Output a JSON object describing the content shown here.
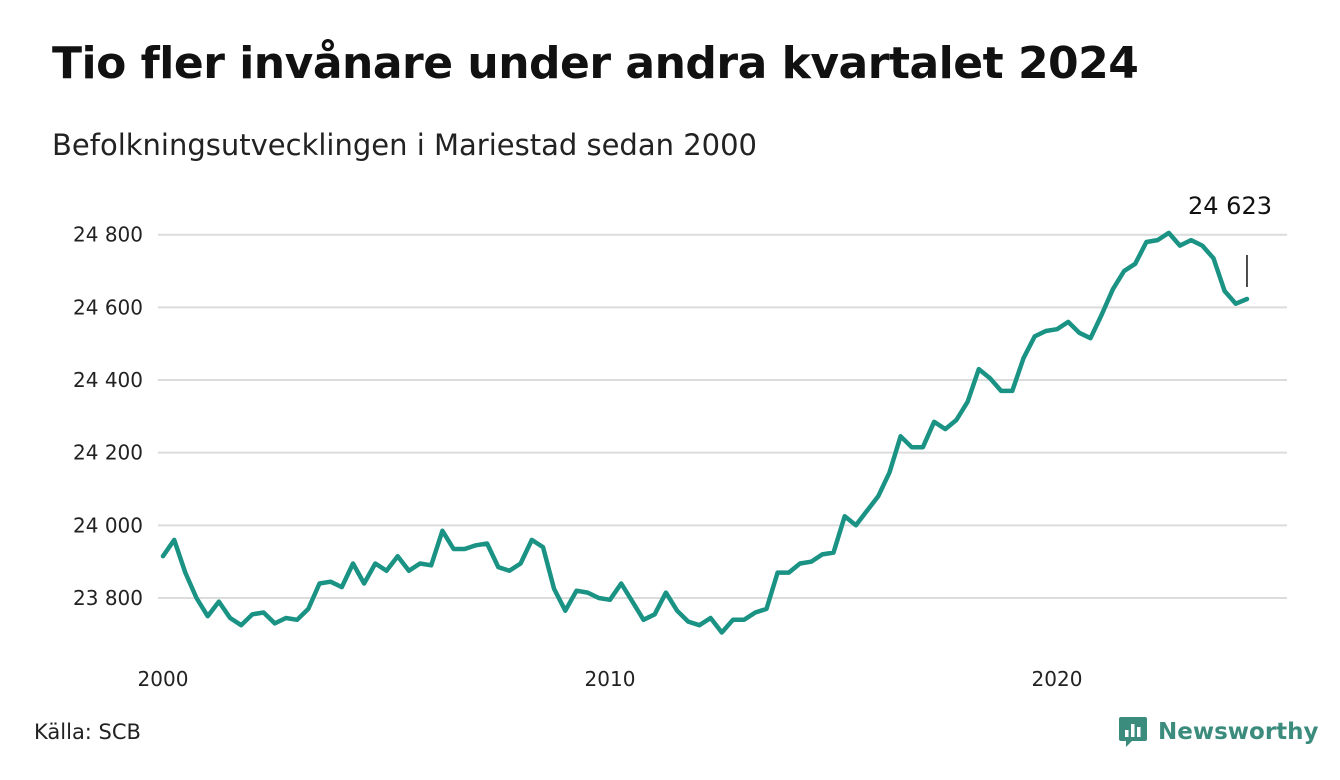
{
  "header": {
    "title": "Tio fler invånare under andra kvartalet 2024",
    "subtitle": "Befolkningsutvecklingen i Mariestad sedan 2000"
  },
  "footer": {
    "source": "Källa: SCB",
    "brand": "Newsworthy"
  },
  "colors": {
    "line": "#1a9384",
    "grid": "#dcdcdc",
    "brand": "#3c8c7e"
  },
  "icons": {
    "brand_logo": "newsworthy-logo-icon"
  },
  "chart_data": {
    "type": "line",
    "title": "Tio fler invånare under andra kvartalet 2024",
    "subtitle": "Befolkningsutvecklingen i Mariestad sedan 2000",
    "xlabel": "",
    "ylabel": "",
    "x_ticks": [
      2000,
      2010,
      2020
    ],
    "y_ticks": [
      23800,
      24000,
      24200,
      24400,
      24600,
      24800
    ],
    "y_tick_labels": [
      "23 800",
      "24 000",
      "24 200",
      "24 400",
      "24 600",
      "24 800"
    ],
    "xlim": [
      2000,
      2024.5
    ],
    "ylim": [
      23700,
      24820
    ],
    "grid": true,
    "legend": "none",
    "annotation": {
      "label": "24 623",
      "x": 2024.25,
      "y": 24623
    },
    "series": [
      {
        "x_start": 2000.0,
        "x_step": 0.25,
        "values": [
          23915,
          23960,
          23870,
          23800,
          23750,
          23790,
          23745,
          23725,
          23755,
          23760,
          23730,
          23745,
          23740,
          23770,
          23840,
          23845,
          23830,
          23895,
          23840,
          23895,
          23875,
          23915,
          23875,
          23895,
          23890,
          23985,
          23935,
          23935,
          23945,
          23950,
          23885,
          23875,
          23895,
          23960,
          23940,
          23825,
          23765,
          23820,
          23815,
          23800,
          23795,
          23840,
          23790,
          23740,
          23755,
          23815,
          23765,
          23735,
          23725,
          23745,
          23705,
          23740,
          23740,
          23760,
          23770,
          23870,
          23870,
          23895,
          23900,
          23920,
          23925,
          24025,
          24000,
          24040,
          24080,
          24145,
          24245,
          24215,
          24215,
          24285,
          24265,
          24290,
          24340,
          24430,
          24405,
          24370,
          24370,
          24460,
          24520,
          24535,
          24540,
          24560,
          24530,
          24515,
          24580,
          24650,
          24700,
          24720,
          24780,
          24785,
          24805,
          24770,
          24785,
          24770,
          24735,
          24645,
          24610,
          24623
        ]
      }
    ]
  }
}
